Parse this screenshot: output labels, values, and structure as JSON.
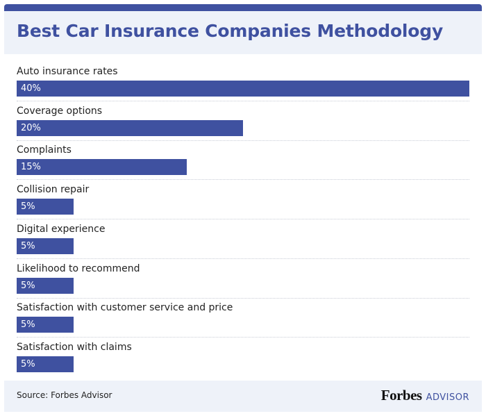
{
  "chart_data": {
    "type": "bar",
    "title": "Best Car Insurance Companies Methodology",
    "categories": [
      "Auto insurance rates",
      "Coverage options",
      "Complaints",
      "Collision repair",
      "Digital experience",
      "Likelihood to recommend",
      "Satisfaction with customer service and price",
      "Satisfaction with claims"
    ],
    "values": [
      40,
      20,
      15,
      5,
      5,
      5,
      5,
      5
    ],
    "value_labels": [
      "40%",
      "20%",
      "15%",
      "5%",
      "5%",
      "5%",
      "5%",
      "5%"
    ],
    "orientation": "horizontal",
    "xlim": [
      0,
      40
    ],
    "color": "#3f51a0"
  },
  "footer": {
    "source": "Source: Forbes Advisor",
    "logo_main": "Forbes",
    "logo_sub": "ADVISOR"
  }
}
